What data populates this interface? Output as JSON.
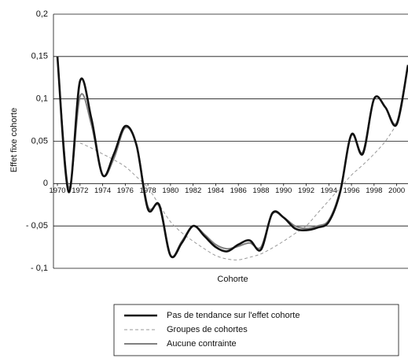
{
  "chart_data": {
    "type": "line",
    "x_label": "Cohorte",
    "y_label": "Effet fixe cohorte",
    "x": [
      1970,
      1971,
      1972,
      1973,
      1974,
      1975,
      1976,
      1977,
      1978,
      1979,
      1980,
      1981,
      1982,
      1983,
      1984,
      1985,
      1986,
      1987,
      1988,
      1989,
      1990,
      1991,
      1992,
      1993,
      1994,
      1995,
      1996,
      1997,
      1998,
      1999,
      2000,
      2001
    ],
    "xlim": [
      1969.65,
      2001
    ],
    "xticks": [
      1970,
      1972,
      1974,
      1976,
      1978,
      1980,
      1982,
      1984,
      1986,
      1988,
      1990,
      1992,
      1994,
      1996,
      1998,
      2000
    ],
    "ylim": [
      -0.1,
      0.2
    ],
    "yticks": [
      {
        "value": -0.1,
        "label": "- 0,1"
      },
      {
        "value": -0.05,
        "label": "- 0,05"
      },
      0,
      {
        "value": 0.05,
        "label": "0,05"
      },
      {
        "value": 0.1,
        "label": "0,1"
      },
      {
        "value": 0.15,
        "label": "0,15"
      },
      {
        "value": 0.2,
        "label": "0,2"
      }
    ],
    "grid": true,
    "legend": "bottom",
    "series": [
      {
        "name": "Pas de tendance sur l'effet cohorte",
        "color": "#111111",
        "style": "solid",
        "values": [
          0.15,
          -0.01,
          0.121,
          0.077,
          0.01,
          0.035,
          0.068,
          0.045,
          -0.03,
          -0.025,
          -0.085,
          -0.07,
          -0.05,
          -0.062,
          -0.075,
          -0.08,
          -0.072,
          -0.067,
          -0.078,
          -0.035,
          -0.04,
          -0.053,
          -0.055,
          -0.052,
          -0.045,
          -0.01,
          0.058,
          0.035,
          0.1,
          0.09,
          0.07,
          0.14
        ]
      },
      {
        "name": "Groupes de cohortes",
        "color": "#999999",
        "style": "dashed",
        "values": [
          null,
          null,
          0.048,
          0.042,
          0.035,
          0.028,
          0.02,
          0.008,
          -0.005,
          -0.025,
          -0.045,
          -0.058,
          -0.068,
          -0.077,
          -0.085,
          -0.089,
          -0.09,
          -0.087,
          -0.083,
          -0.076,
          -0.068,
          -0.059,
          -0.05,
          -0.035,
          -0.02,
          -0.005,
          0.01,
          0.022,
          0.035,
          0.05,
          0.07,
          null
        ]
      },
      {
        "name": "Aucune contrainte",
        "color": "#808080",
        "style": "solid",
        "values": [
          0.15,
          -0.005,
          0.103,
          0.07,
          0.01,
          0.03,
          0.066,
          0.045,
          -0.027,
          -0.027,
          -0.085,
          -0.068,
          -0.05,
          -0.06,
          -0.072,
          -0.077,
          -0.074,
          -0.07,
          -0.075,
          -0.036,
          -0.04,
          -0.05,
          -0.053,
          -0.05,
          -0.043,
          -0.008,
          0.057,
          0.037,
          0.1,
          0.09,
          0.072,
          0.14
        ]
      }
    ]
  }
}
